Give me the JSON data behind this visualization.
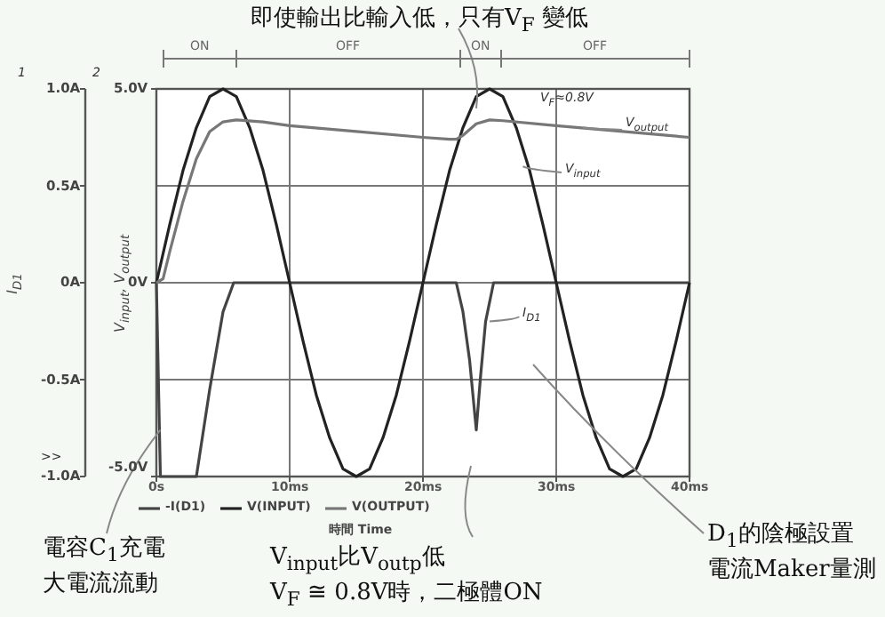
{
  "chart_data": {
    "type": "line",
    "xlabel": "時間 Time",
    "ylabel": "V$_{input}$, V$_{output}$",
    "y2label": "I$_{D1}$",
    "xlim": [
      0,
      40
    ],
    "xticks": [
      {
        "value": 0,
        "label": "0s"
      },
      {
        "value": 10,
        "label": "10ms"
      },
      {
        "value": 20,
        "label": "20ms"
      },
      {
        "value": 30,
        "label": "30ms"
      },
      {
        "value": 40,
        "label": "40ms"
      }
    ],
    "ylim": [
      -5,
      5
    ],
    "yticks": [
      {
        "value": -5,
        "label": "-5.0V"
      },
      {
        "value": 0,
        "label": "0V"
      },
      {
        "value": 5,
        "label": "5.0V"
      }
    ],
    "y2lim": [
      -1,
      1
    ],
    "y2ticks": [
      {
        "value": -1,
        "label": "-1.0A"
      },
      {
        "value": -0.5,
        "label": "-0.5A"
      },
      {
        "value": 0,
        "label": "0A"
      },
      {
        "value": 0.5,
        "label": "0.5A"
      },
      {
        "value": 1,
        "label": "1.0A"
      }
    ],
    "grid": true,
    "legend": "bottom",
    "series": [
      {
        "name": "-I(D1)",
        "color": "#444444",
        "axis": "y2",
        "x": [
          0,
          0.3,
          3,
          4,
          5,
          5.8,
          22.5,
          23,
          23.5,
          24,
          24.3,
          24.7,
          25.3,
          40
        ],
        "values": [
          0,
          -1,
          -1,
          -0.55,
          -0.15,
          0,
          0,
          -0.15,
          -0.4,
          -0.76,
          -0.5,
          -0.2,
          0,
          0
        ]
      },
      {
        "name": "V(INPUT)",
        "color": "#222222",
        "x": [
          0,
          1,
          2,
          3,
          4,
          5,
          6,
          7,
          8,
          9,
          10,
          11,
          12,
          13,
          14,
          15,
          16,
          17,
          18,
          19,
          20,
          21,
          22,
          23,
          24,
          25,
          26,
          27,
          28,
          29,
          30,
          31,
          32,
          33,
          34,
          35,
          36,
          37,
          38,
          39,
          40
        ],
        "values": [
          0,
          1.5,
          2.9,
          4.0,
          4.8,
          5.0,
          4.8,
          4.0,
          2.9,
          1.5,
          0,
          -1.5,
          -2.9,
          -4.0,
          -4.8,
          -5.0,
          -4.8,
          -4.0,
          -2.9,
          -1.5,
          0,
          1.5,
          2.9,
          4.0,
          4.8,
          5.0,
          4.8,
          4.0,
          2.9,
          1.5,
          0,
          -1.5,
          -2.9,
          -4.0,
          -4.8,
          -5.0,
          -4.8,
          -4.0,
          -2.9,
          -1.5,
          0
        ]
      },
      {
        "name": "V(OUTPUT)",
        "color": "#777777",
        "x": [
          0,
          0.5,
          1,
          2,
          3,
          4,
          5,
          6,
          8,
          10,
          15,
          20,
          22,
          22.5,
          23,
          23.5,
          24,
          25,
          26,
          30,
          35,
          40
        ],
        "values": [
          0,
          0.1,
          0.8,
          2.1,
          3.2,
          3.9,
          4.15,
          4.2,
          4.15,
          4.05,
          3.9,
          3.75,
          3.7,
          3.7,
          3.8,
          3.95,
          4.1,
          4.2,
          4.18,
          4.05,
          3.9,
          3.75
        ]
      }
    ],
    "annotations": [
      {
        "text": "即使輸出比輸入低，只有V$_{F}$ 變低",
        "x": 24,
        "y": 4.5
      },
      "V$_{F}$≈0.8V",
      {
        "text": "V$_{output}$",
        "x": 32,
        "y": 4.0
      },
      {
        "text": "V$_{input}$",
        "x": 27.5,
        "y": 3.0
      },
      {
        "text": "I$_{D1}$",
        "x": 25,
        "y": -1.0
      },
      {
        "text": "電容C$_{1}$充電",
        "x": 0.3,
        "y": -3.8
      },
      "大電流流動",
      "V$_{input}$比V$_{outp}$低",
      "V$_{F}$ ≅ 0.8V時，二極體ON",
      "D$_{1}$的陰極設置",
      "電流Maker量測",
      "1",
      "2",
      ">>",
      "ON",
      "OFF",
      "ON",
      "OFF"
    ]
  }
}
